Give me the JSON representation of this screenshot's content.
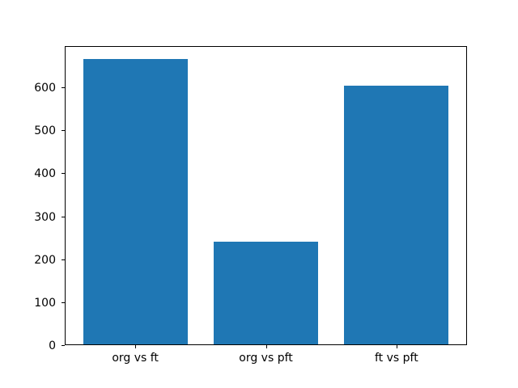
{
  "chart_data": {
    "type": "bar",
    "title": "",
    "xlabel": "",
    "ylabel": "",
    "categories": [
      "org vs ft",
      "org vs pft",
      "ft vs pft"
    ],
    "values": [
      665,
      240,
      604
    ],
    "yticks": [
      0,
      100,
      200,
      300,
      400,
      500,
      600
    ],
    "ylim": [
      0,
      696
    ],
    "xlim": [
      -0.54,
      2.54
    ],
    "bar_width_fraction": 0.8,
    "bar_color": "#1f77b4",
    "axes_edge_color": "#000000",
    "tick_label_color": "#000000",
    "background_color": "#ffffff",
    "grid": false,
    "legend": null
  }
}
